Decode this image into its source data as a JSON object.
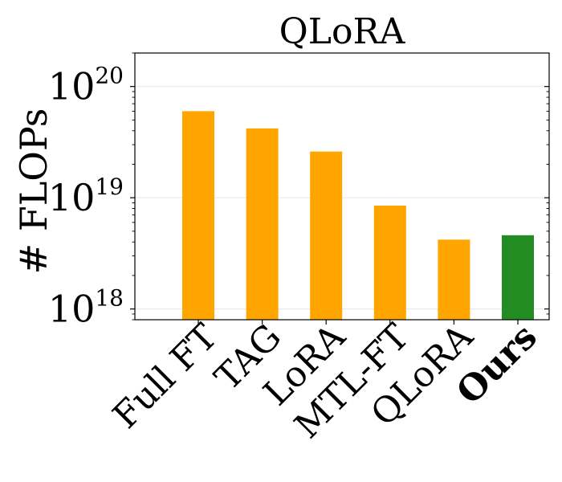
{
  "chart_data": {
    "type": "bar",
    "title": "QLoRA",
    "xlabel": "",
    "ylabel": "# FLOPs",
    "yscale": "log",
    "ylim": [
      8e+17,
      2e+20
    ],
    "yticks": [
      {
        "value": 1e+18,
        "base": "10",
        "exp": "18"
      },
      {
        "value": 1e+19,
        "base": "10",
        "exp": "19"
      },
      {
        "value": 1e+20,
        "base": "10",
        "exp": "20"
      }
    ],
    "grid": true,
    "categories": [
      "Full FT",
      "TAG",
      "LoRA",
      "MTL-FT",
      "QLoRA",
      "Ours"
    ],
    "values": [
      6e+19,
      4.2e+19,
      2.6e+19,
      8.5e+18,
      4.2e+18,
      4.6e+18
    ],
    "colors": [
      "#FFA500",
      "#FFA500",
      "#FFA500",
      "#FFA500",
      "#FFA500",
      "#228B22"
    ],
    "bold_categories": [
      "Ours"
    ]
  }
}
